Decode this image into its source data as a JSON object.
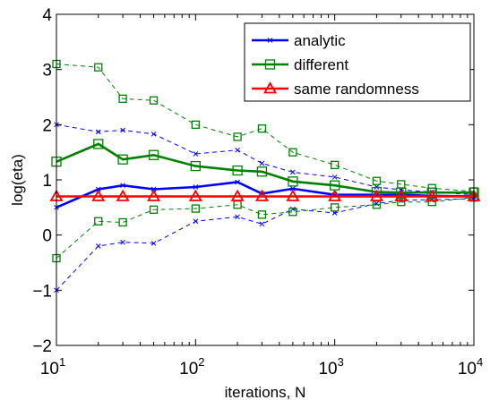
{
  "chart_data": {
    "type": "line",
    "title": "",
    "xlabel": "iterations, N",
    "ylabel": "log(eta)",
    "xscale": "log",
    "xlim": [
      10,
      10000
    ],
    "ylim": [
      -2,
      4
    ],
    "grid": false,
    "legend_position": "top-right",
    "x": [
      10,
      20,
      30,
      50,
      100,
      200,
      300,
      500,
      1000,
      2000,
      3000,
      5000,
      10000
    ],
    "xticks": [
      {
        "value": 10,
        "base": "10",
        "exp": "1"
      },
      {
        "value": 100,
        "base": "10",
        "exp": "2"
      },
      {
        "value": 1000,
        "base": "10",
        "exp": "3"
      },
      {
        "value": 10000,
        "base": "10",
        "exp": "4"
      }
    ],
    "yticks": [
      -2,
      -1,
      0,
      1,
      2,
      3,
      4
    ],
    "series": [
      {
        "name": "analytic",
        "color": "#0000ff",
        "marker": "x",
        "values": [
          0.5,
          0.83,
          0.9,
          0.83,
          0.87,
          0.96,
          0.75,
          0.84,
          0.73,
          0.73,
          0.73,
          0.71,
          0.7
        ],
        "upper": [
          2.0,
          1.87,
          1.9,
          1.83,
          1.47,
          1.54,
          1.3,
          1.14,
          1.05,
          0.87,
          0.82,
          0.78,
          0.73
        ],
        "lower": [
          -1.0,
          -0.2,
          -0.13,
          -0.15,
          0.25,
          0.33,
          0.2,
          0.47,
          0.4,
          0.57,
          0.63,
          0.64,
          0.66
        ]
      },
      {
        "name": "different",
        "color": "#008000",
        "marker": "square",
        "values": [
          1.33,
          1.65,
          1.37,
          1.45,
          1.25,
          1.17,
          1.15,
          0.97,
          0.9,
          0.78,
          0.77,
          0.77,
          0.77
        ],
        "upper": [
          3.1,
          3.04,
          2.47,
          2.44,
          2.0,
          1.78,
          1.93,
          1.5,
          1.27,
          0.98,
          0.92,
          0.85,
          0.79
        ],
        "lower": [
          -0.42,
          0.25,
          0.23,
          0.46,
          0.48,
          0.55,
          0.37,
          0.42,
          0.5,
          0.55,
          0.6,
          0.6,
          0.68
        ]
      },
      {
        "name": "same randomness",
        "color": "#ff0000",
        "marker": "triangle",
        "values": [
          0.7,
          0.7,
          0.7,
          0.7,
          0.7,
          0.7,
          0.7,
          0.7,
          0.7,
          0.7,
          0.7,
          0.7,
          0.7
        ]
      }
    ]
  }
}
